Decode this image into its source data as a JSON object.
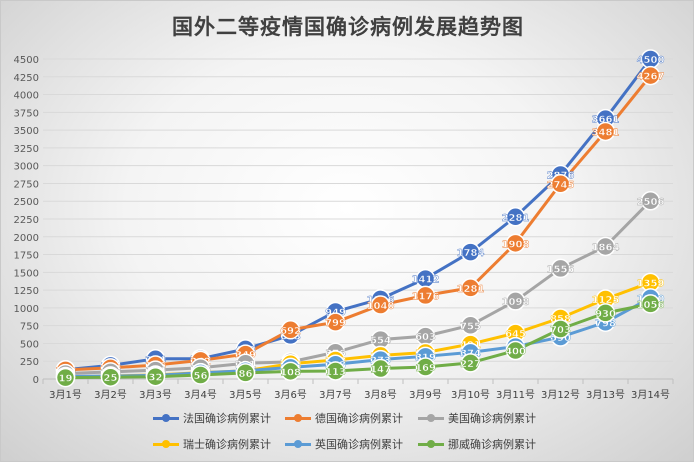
{
  "chart_data": {
    "type": "line",
    "title": "国外二等疫情国确诊病例发展趋势图",
    "categories": [
      "3月1号",
      "3月2号",
      "3月3号",
      "3月4号",
      "3月5号",
      "3月6号",
      "3月7号",
      "3月8号",
      "3月9号",
      "3月10号",
      "3月11号",
      "3月12号",
      "3月13号",
      "3月14号"
    ],
    "ylim": [
      0,
      4500
    ],
    "yticks": [
      0,
      250,
      500,
      750,
      1000,
      1250,
      1500,
      1750,
      2000,
      2250,
      2500,
      2750,
      3000,
      3250,
      3500,
      3750,
      4000,
      4250,
      4500
    ],
    "grid": true,
    "legend_position": "bottom",
    "series": [
      {
        "name": "法国确诊病例累计",
        "color": "#4472c4",
        "values": [
          130,
          191,
          284,
          285,
          423,
          613,
          949,
          1126,
          1412,
          1784,
          2281,
          2876,
          3661,
          4500
        ]
      },
      {
        "name": "德国确诊病例累计",
        "color": "#ed7d31",
        "values": [
          129,
          157,
          196,
          262,
          349,
          692,
          799,
          1040,
          1176,
          1281,
          1908,
          2745,
          3481,
          4267
        ]
      },
      {
        "name": "美国确诊病例累计",
        "color": "#a5a5a5",
        "values": [
          75,
          100,
          124,
          158,
          221,
          241,
          376,
          554,
          603,
          755,
          1098,
          1555,
          1864,
          2506
        ]
      },
      {
        "name": "瑞士确诊病例累计",
        "color": "#ffc000",
        "values": [
          24,
          42,
          56,
          90,
          114,
          214,
          268,
          332,
          373,
          491,
          645,
          858,
          1125,
          1359
        ]
      },
      {
        "name": "英国确诊病例累计",
        "color": "#5b9bd5",
        "values": [
          36,
          40,
          51,
          87,
          116,
          164,
          208,
          273,
          319,
          374,
          456,
          590,
          798,
          1140
        ]
      },
      {
        "name": "挪威确诊病例累计",
        "color": "#70ad47",
        "values": [
          19,
          25,
          32,
          56,
          86,
          108,
          113,
          147,
          169,
          227,
          400,
          703,
          930,
          1056
        ]
      }
    ]
  }
}
